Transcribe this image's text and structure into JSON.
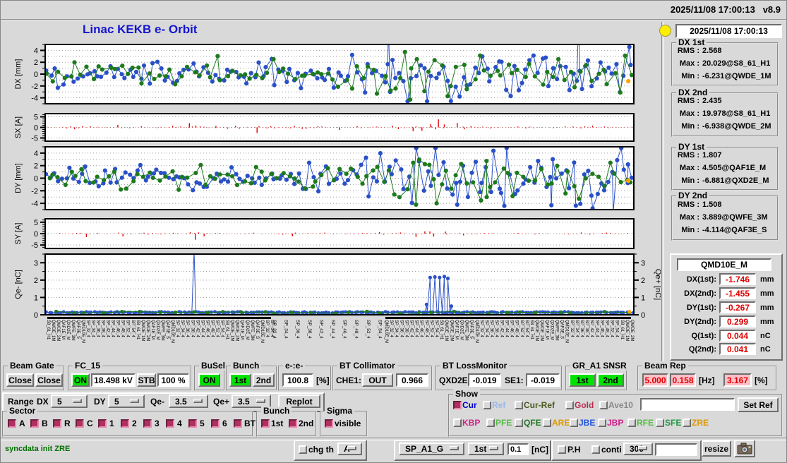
{
  "window": {
    "top_datetime": "2025/11/08 17:00:13",
    "version": "v8.9",
    "title": "Linac KEKB e- Orbit",
    "panel_datetime": "2025/11/08 17:00:13"
  },
  "plots": {
    "dx": {
      "axis_label": "DX [mm]",
      "ticks": [
        4,
        2,
        0,
        -2,
        -4
      ],
      "series": [
        {
          "color": "#2a50c8",
          "kind": "gauss",
          "n": 150,
          "seed": 101,
          "amp1": 1.05,
          "amp2": 2.2,
          "clamp": 4.6,
          "specials": [
            [
              0.583,
              9
            ],
            [
              0.586,
              -3
            ],
            [
              0.906,
              9
            ],
            [
              0.912,
              -2.5
            ]
          ]
        },
        {
          "color": "#1d7a1d",
          "kind": "gauss",
          "n": 105,
          "seed": 202,
          "amp1": 0.95,
          "amp2": 1.9,
          "clamp": 4.4,
          "specials": [
            [
              0.62,
              -4.3
            ]
          ]
        },
        {
          "color": "#ffa500",
          "kind": "flat",
          "n": 0,
          "seed": 1,
          "base": 0,
          "jitter": 0,
          "specials": [
            [
              0.9905,
              -1.2
            ]
          ]
        }
      ]
    },
    "sx": {
      "axis_label": "SX [A]",
      "ticks": [
        5,
        0,
        -5
      ],
      "series": [
        {
          "color": "#e60000",
          "kind": "bars",
          "n": 150,
          "seed": 303,
          "amp": 0.28,
          "specials": [
            [
              0.05,
              -0.9
            ],
            [
              0.245,
              2.0
            ],
            [
              0.256,
              0.9
            ],
            [
              0.29,
              0.7
            ],
            [
              0.36,
              -2.6
            ],
            [
              0.5,
              -1.2
            ],
            [
              0.6,
              -0.8
            ],
            [
              0.625,
              -1.8
            ],
            [
              0.64,
              -1.6
            ],
            [
              0.655,
              1.5
            ],
            [
              0.668,
              3.8
            ],
            [
              0.678,
              1.4
            ],
            [
              0.7,
              2.1
            ],
            [
              0.712,
              -0.9
            ]
          ]
        }
      ]
    },
    "dy": {
      "axis_label": "DY [mm]",
      "ticks": [
        4,
        2,
        0,
        -2,
        -4
      ],
      "series": [
        {
          "color": "#2a50c8",
          "kind": "gauss",
          "n": 150,
          "seed": 505,
          "amp1": 1.05,
          "amp2": 2.4,
          "clamp": 4.8,
          "specials": [
            [
              0.7,
              -4.2
            ],
            [
              0.78,
              -4.4
            ],
            [
              0.86,
              -4.3
            ],
            [
              0.93,
              -4.8
            ],
            [
              0.965,
              -5.5
            ],
            [
              0.99,
              2.2
            ]
          ]
        },
        {
          "color": "#1d7a1d",
          "kind": "gauss",
          "n": 105,
          "seed": 606,
          "amp1": 0.95,
          "amp2": 1.9,
          "clamp": 4.4,
          "specials": [
            [
              0.63,
              -4.2
            ],
            [
              0.665,
              -4.0
            ],
            [
              0.75,
              -3.0
            ]
          ]
        },
        {
          "color": "#ffa500",
          "kind": "flat",
          "n": 0,
          "seed": 1,
          "base": 0,
          "jitter": 0,
          "specials": [
            [
              0.9905,
              -0.4
            ]
          ]
        }
      ]
    },
    "sy": {
      "axis_label": "SY [A]",
      "ticks": [
        5,
        0,
        -5
      ],
      "series": [
        {
          "color": "#e60000",
          "kind": "bars",
          "n": 140,
          "seed": 404,
          "amp": 0.22,
          "specials": [
            [
              0.07,
              -1.5
            ],
            [
              0.255,
              -2.7
            ],
            [
              0.27,
              -1.2
            ],
            [
              0.42,
              -1.1
            ],
            [
              0.63,
              -1.5
            ],
            [
              0.645,
              1.0
            ],
            [
              0.66,
              -1.3
            ],
            [
              0.68,
              0.9
            ]
          ]
        }
      ]
    },
    "qe": {
      "axis_label": "Qe- [nC]",
      "right_axis_label": "Qe+ [nC]",
      "ticks": [
        3,
        2,
        1,
        0
      ],
      "series": [
        {
          "color": "#2a50c8",
          "kind": "flat",
          "n": 210,
          "seed": 707,
          "base": 0.1,
          "jitter": 0.07,
          "specials": [
            [
              0.253,
              3.7
            ],
            [
              0.648,
              0.6
            ],
            [
              0.654,
              2.15
            ],
            [
              0.662,
              2.18
            ],
            [
              0.67,
              2.15
            ],
            [
              0.678,
              2.2
            ],
            [
              0.684,
              2.1
            ],
            [
              0.69,
              0.5
            ]
          ]
        },
        {
          "color": "#1d7a1d",
          "kind": "flat",
          "n": 34,
          "seed": 808,
          "base": 0.08,
          "jitter": 0.12,
          "specials": []
        },
        {
          "color": "#ffa500",
          "kind": "flat",
          "n": 0,
          "seed": 1,
          "base": 0,
          "jitter": 0,
          "specials": [
            [
              0.9925,
              0.18
            ]
          ]
        }
      ]
    },
    "sp_labels": [
      "SP_32_4",
      "SP_34_4",
      "SP_36_4",
      "SP_38_4",
      "SP_42_4",
      "SP_44_4",
      "SP_46_4",
      "SP_48_4",
      "SP_52_4",
      "SP_54_4"
    ],
    "stations": [
      "S8_61_H1",
      "QWDE_1M",
      "QWDE_2M",
      "QAF1E_M",
      "QXD2E_M",
      "QWFE_3M",
      "QAF3E_S",
      "QMD10E_M",
      "SP_32_4",
      "SP_34_4",
      "SP_36_4",
      "SP_38_4",
      "SP_42_4",
      "SP_44_4",
      "SP_46_4",
      "SP_48_4",
      "SP_52_4",
      "SP_54_4"
    ]
  },
  "stats": {
    "labels": {
      "rms": "RMS :",
      "max": "Max :",
      "min": "Min :"
    },
    "groups": [
      {
        "title": "DX 1st",
        "rms": "2.568",
        "max": "20.029@S8_61_H1",
        "min": "-6.231@QWDE_1M"
      },
      {
        "title": "DX 2nd",
        "rms": "2.435",
        "max": "19.978@S8_61_H1",
        "min": "-6.938@QWDE_2M"
      },
      {
        "title": "DY 1st",
        "rms": "1.807",
        "max": "4.505@QAF1E_M",
        "min": "-6.881@QXD2E_M"
      },
      {
        "title": "DY 2nd",
        "rms": "1.508",
        "max": "3.889@QWFE_3M",
        "min": "-4.114@QAF3E_S"
      }
    ]
  },
  "monitor": {
    "title": "QMD10E_M",
    "rows": [
      {
        "label": "DX(1st):",
        "value": "-1.746",
        "unit": "mm"
      },
      {
        "label": "DX(2nd):",
        "value": "-1.455",
        "unit": "mm"
      },
      {
        "label": "DY(1st):",
        "value": "-0.267",
        "unit": "mm"
      },
      {
        "label": "DY(2nd):",
        "value": "0.299",
        "unit": "mm"
      },
      {
        "label": "Q(1st):",
        "value": "0.044",
        "unit": "nC"
      },
      {
        "label": "Q(2nd):",
        "value": "0.041",
        "unit": "nC"
      }
    ]
  },
  "controls": {
    "beam_gate": {
      "title": "Beam Gate",
      "b1": "Close",
      "b2": "Close"
    },
    "fc15": {
      "title": "FC_15",
      "on": "ON",
      "kv": "18.498 kV",
      "stb": "STB",
      "pct": "100 %"
    },
    "busel": {
      "title": "BuSel",
      "on": "ON"
    },
    "bunch": {
      "title": "Bunch",
      "b1": "1st",
      "b2": "2nd"
    },
    "ee": {
      "title": "e-:e-",
      "value": "100.8",
      "unit": "[%]"
    },
    "bt_collimator": {
      "title": "BT Collimator",
      "label": "CHE1:",
      "state": "OUT",
      "value": "0.966"
    },
    "bt_loss": {
      "title": "BT LossMonitor",
      "l1": "QXD2E:",
      "v1": "-0.019",
      "l2": "SE1:",
      "v2": "-0.019"
    },
    "gr_snsr": {
      "title": "GR_A1 SNSR",
      "b1": "1st",
      "b2": "2nd"
    },
    "beam_rep": {
      "title": "Beam Rep",
      "v1": "5.000",
      "v2": "0.158",
      "u1": "[Hz]",
      "v3": "3.167",
      "u2": "[%]"
    },
    "range": {
      "label": "Range",
      "dx_label": "DX",
      "dx": "5",
      "dy_label": "DY",
      "dy": "5",
      "qem_label": "Qe-",
      "qem": "3.5",
      "qep_label": "Qe+",
      "qep": "3.5",
      "replot": "Replot"
    },
    "sector": {
      "title": "Sector",
      "items": [
        "A",
        "B",
        "R",
        "C",
        "1",
        "2",
        "3",
        "4",
        "5",
        "6",
        "BT"
      ]
    },
    "bunch2": {
      "title": "Bunch",
      "b1": "1st",
      "b2": "2nd"
    },
    "sigma": {
      "title": "Sigma",
      "item": "visible"
    },
    "show": {
      "title": "Show",
      "row1": [
        {
          "label": "Cur",
          "color": "#0000cc",
          "checked": true
        },
        {
          "label": "Ref",
          "color": "#9db8ea",
          "checked": false
        },
        {
          "label": "Cur-Ref",
          "color": "#4a5a20",
          "checked": false
        },
        {
          "label": "Gold",
          "color": "#b43050",
          "checked": false
        },
        {
          "label": "Ave10",
          "color": "#8a8a8a",
          "checked": false
        }
      ],
      "ref_input": "",
      "set_ref": "Set Ref",
      "row2": [
        {
          "label": "KBP",
          "color": "#cc2288"
        },
        {
          "label": "PFE",
          "color": "#55bb44"
        },
        {
          "label": "QFE",
          "color": "#227722"
        },
        {
          "label": "ARE",
          "color": "#dd9900"
        },
        {
          "label": "JBE",
          "color": "#2255dd"
        },
        {
          "label": "JBP",
          "color": "#cc2288"
        },
        {
          "label": "RFE",
          "color": "#55bb44"
        },
        {
          "label": "SFE",
          "color": "#229944"
        },
        {
          "label": "ZRE",
          "color": "#dd9900"
        }
      ]
    }
  },
  "statusbar": {
    "message": "syncdata init ZRE",
    "chg_th": "chg th",
    "th_sel": "A",
    "sp_sel": "SP_A1_G",
    "bunch_sel": "1st",
    "thresh": "0.1",
    "thresh_unit": "[nC]",
    "ph": "P.H",
    "conti": "conti",
    "num": "300",
    "num_input": "",
    "resize": "resize"
  }
}
